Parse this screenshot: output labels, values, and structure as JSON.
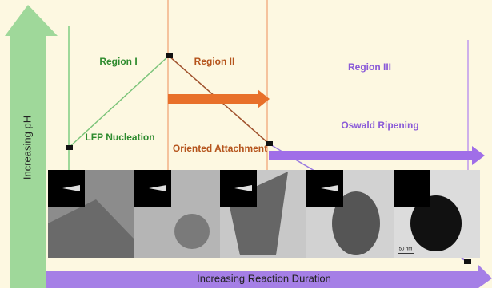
{
  "axes": {
    "y_label": "Increasing pH",
    "x_label": "Increasing Reaction Duration"
  },
  "regions": [
    {
      "title": "Region I",
      "process": "LFP Nucleation"
    },
    {
      "title": "Region II",
      "process": "Oriented Attachment"
    },
    {
      "title": "Region III",
      "process": "Oswald Ripening"
    }
  ],
  "scale_bar": "50 nm"
}
